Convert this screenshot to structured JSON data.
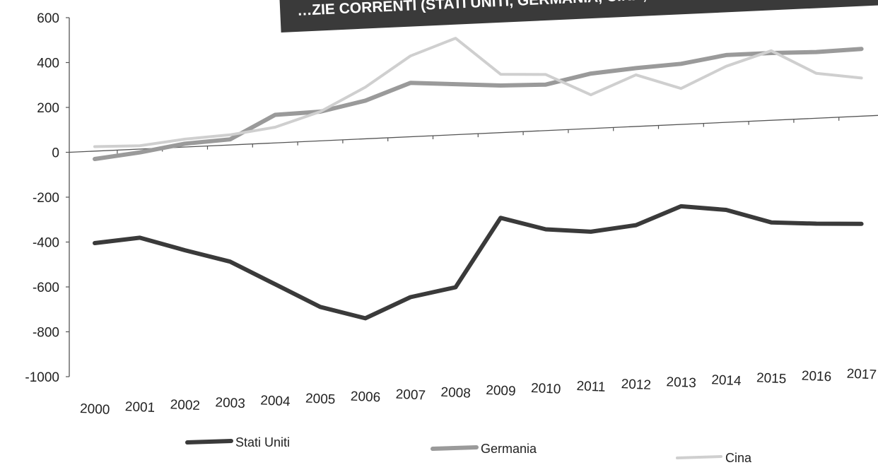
{
  "chart_data": {
    "type": "line",
    "title": "…ZIE CORRENTI (STATI UNITI, GERMANIA, CINA, in mld di $)",
    "xlabel": "",
    "ylabel": "",
    "categories": [
      "2000",
      "2001",
      "2002",
      "2003",
      "2004",
      "2005",
      "2006",
      "2007",
      "2008",
      "2009",
      "2010",
      "2011",
      "2012",
      "2013",
      "2014",
      "2015",
      "2016",
      "2017"
    ],
    "ylim": [
      -1000,
      600
    ],
    "yticks": [
      "600",
      "400",
      "200",
      "0",
      "-200",
      "-400",
      "-600",
      "-800",
      "-1000"
    ],
    "grid": false,
    "legend_position": "bottom",
    "series": [
      {
        "name": "Stati Uniti",
        "color": "#3a3a3a",
        "values": [
          -410,
          -395,
          -460,
          -520,
          -630,
          -740,
          -800,
          -715,
          -680,
          -380,
          -440,
          -460,
          -440,
          -365,
          -390,
          -455,
          -470,
          -480
        ]
      },
      {
        "name": "Germania",
        "color": "#9a9a9a",
        "values": [
          -35,
          -15,
          15,
          25,
          125,
          130,
          170,
          240,
          225,
          210,
          205,
          245,
          260,
          270,
          300,
          300,
          295,
          300
        ]
      },
      {
        "name": "Cina",
        "color": "#cfcfcf",
        "values": [
          20,
          15,
          35,
          45,
          70,
          130,
          230,
          360,
          430,
          260,
          250,
          150,
          230,
          160,
          250,
          310,
          200,
          170
        ]
      }
    ]
  }
}
